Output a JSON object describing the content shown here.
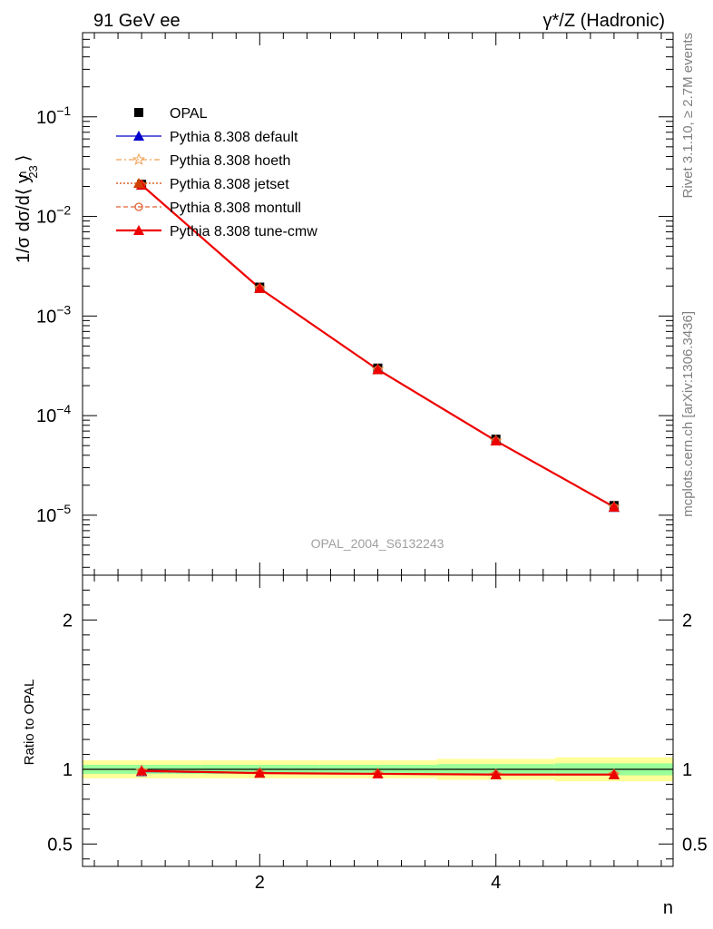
{
  "header": {
    "left": "91 GeV ee",
    "right": "γ*/Z (Hadronic)"
  },
  "side": {
    "rivet": "Rivet 3.1.10, ≥ 2.7M events",
    "mcplots": "mcplots.cern.ch [arXiv:1306.3436]"
  },
  "watermark": "OPAL_2004_S6132243",
  "colors": {
    "data": "#000000",
    "default": "#0000cc",
    "hoeth": "#f0a050",
    "jetset": "#d04000",
    "montull": "#e06030",
    "tunecmw": "#ee0000",
    "band_inner": "#99ff99",
    "band_outer": "#ffff99"
  },
  "chart_data": [
    {
      "type": "line",
      "ylabel": "1/σ dσ/d⟨ y",
      "ylabel_sup": "n",
      "ylabel_sub": "23",
      "ylabel_tail": "⟩",
      "xlim": [
        0.5,
        5.5
      ],
      "ylim": [
        2.5e-06,
        0.7
      ],
      "yscale": "log",
      "yticks": [
        {
          "value": 1e-05,
          "exp": "−5"
        },
        {
          "value": 0.0001,
          "exp": "−4"
        },
        {
          "value": 0.001,
          "exp": "−3"
        },
        {
          "value": 0.01,
          "exp": "−2"
        },
        {
          "value": 0.1,
          "exp": "−1"
        }
      ],
      "ytick_base": "10",
      "legend_position": "top-left",
      "x": [
        1,
        2,
        3,
        4,
        5
      ],
      "series": [
        {
          "name": "OPAL",
          "key": "data",
          "values": [
            0.021,
            0.00195,
            0.0003,
            5.8e-05,
            1.25e-05
          ]
        },
        {
          "name": "Pythia 8.308 default",
          "key": "default",
          "values": [
            0.0206,
            0.0019,
            0.00029,
            5.57e-05,
            1.2e-05
          ]
        },
        {
          "name": "Pythia 8.308 hoeth",
          "key": "hoeth",
          "values": [
            0.0207,
            0.0019,
            0.00029,
            5.58e-05,
            1.21e-05
          ]
        },
        {
          "name": "Pythia 8.308 jetset",
          "key": "jetset",
          "values": [
            0.0207,
            0.0019,
            0.00029,
            5.58e-05,
            1.21e-05
          ]
        },
        {
          "name": "Pythia 8.308 montull",
          "key": "montull",
          "values": [
            0.0206,
            0.0019,
            0.00029,
            5.57e-05,
            1.2e-05
          ]
        },
        {
          "name": "Pythia 8.308 tune-cmw",
          "key": "tunecmw",
          "values": [
            0.0207,
            0.0019,
            0.00029,
            5.58e-05,
            1.21e-05
          ]
        }
      ]
    },
    {
      "type": "line",
      "ylabel": "Ratio to OPAL",
      "xlabel": "n",
      "xlim": [
        0.5,
        5.5
      ],
      "ylim": [
        0.35,
        2.3
      ],
      "yticks": [
        0.5,
        1,
        2
      ],
      "ytick_labels": [
        "0.5",
        "1",
        "2"
      ],
      "xticks": [
        2,
        4
      ],
      "xtick_labels": [
        "2",
        "4"
      ],
      "x": [
        1,
        2,
        3,
        4,
        5
      ],
      "band_inner": [
        0.03,
        0.03,
        0.03,
        0.035,
        0.04
      ],
      "band_outer": [
        0.06,
        0.06,
        0.06,
        0.07,
        0.08
      ],
      "series": [
        {
          "name": "Pythia 8.308 default",
          "key": "default",
          "values": [
            0.985,
            0.975,
            0.97,
            0.965,
            0.965
          ]
        },
        {
          "name": "Pythia 8.308 hoeth",
          "key": "hoeth",
          "values": [
            0.99,
            0.975,
            0.97,
            0.965,
            0.965
          ]
        },
        {
          "name": "Pythia 8.308 jetset",
          "key": "jetset",
          "values": [
            0.99,
            0.975,
            0.97,
            0.965,
            0.965
          ]
        },
        {
          "name": "Pythia 8.308 montull",
          "key": "montull",
          "values": [
            0.985,
            0.975,
            0.97,
            0.965,
            0.965
          ]
        },
        {
          "name": "Pythia 8.308 tune-cmw",
          "key": "tunecmw",
          "values": [
            0.99,
            0.975,
            0.97,
            0.965,
            0.965
          ]
        }
      ]
    }
  ]
}
